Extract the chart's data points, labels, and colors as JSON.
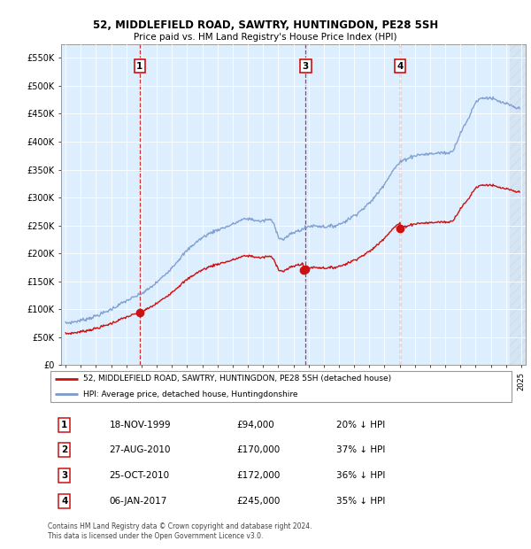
{
  "title1": "52, MIDDLEFIELD ROAD, SAWTRY, HUNTINGDON, PE28 5SH",
  "title2": "Price paid vs. HM Land Registry's House Price Index (HPI)",
  "background_color": "#ddeeff",
  "hpi_color": "#7799cc",
  "price_color": "#cc1111",
  "ylim": [
    0,
    575000
  ],
  "yticks": [
    0,
    50000,
    100000,
    150000,
    200000,
    250000,
    300000,
    350000,
    400000,
    450000,
    500000,
    550000
  ],
  "ytick_labels": [
    "£0",
    "£50K",
    "£100K",
    "£150K",
    "£200K",
    "£250K",
    "£300K",
    "£350K",
    "£400K",
    "£450K",
    "£500K",
    "£550K"
  ],
  "sale_years": [
    1999.88,
    2010.65,
    2010.81,
    2017.02
  ],
  "sale_prices": [
    94000,
    170000,
    172000,
    245000
  ],
  "sale_labels": [
    "1",
    "2",
    "3",
    "4"
  ],
  "dashed_line_indices": [
    0,
    2,
    3
  ],
  "legend_price_label": "52, MIDDLEFIELD ROAD, SAWTRY, HUNTINGDON, PE28 5SH (detached house)",
  "legend_hpi_label": "HPI: Average price, detached house, Huntingdonshire",
  "table_rows": [
    [
      "1",
      "18-NOV-1999",
      "£94,000",
      "20% ↓ HPI"
    ],
    [
      "2",
      "27-AUG-2010",
      "£170,000",
      "37% ↓ HPI"
    ],
    [
      "3",
      "25-OCT-2010",
      "£172,000",
      "36% ↓ HPI"
    ],
    [
      "4",
      "06-JAN-2017",
      "£245,000",
      "35% ↓ HPI"
    ]
  ],
  "footnote": "Contains HM Land Registry data © Crown copyright and database right 2024.\nThis data is licensed under the Open Government Licence v3.0.",
  "hpi_anchors_years": [
    1995,
    1996,
    1997,
    1998,
    1999,
    2000,
    2001,
    2002,
    2003,
    2004,
    2005,
    2006,
    2007,
    2008,
    2008.75,
    2009,
    2009.5,
    2010,
    2010.5,
    2011,
    2012,
    2013,
    2014,
    2015,
    2016,
    2017,
    2017.5,
    2018,
    2019,
    2020,
    2020.5,
    2021,
    2021.5,
    2022,
    2022.5,
    2023,
    2023.5,
    2024,
    2024.5,
    2025
  ],
  "hpi_anchors_vals": [
    75000,
    80000,
    88000,
    100000,
    115000,
    128000,
    148000,
    175000,
    205000,
    228000,
    242000,
    252000,
    262000,
    258000,
    250000,
    232000,
    228000,
    237000,
    242000,
    248000,
    248000,
    252000,
    268000,
    290000,
    325000,
    362000,
    370000,
    375000,
    378000,
    380000,
    385000,
    415000,
    440000,
    470000,
    478000,
    478000,
    472000,
    468000,
    462000,
    460000
  ]
}
